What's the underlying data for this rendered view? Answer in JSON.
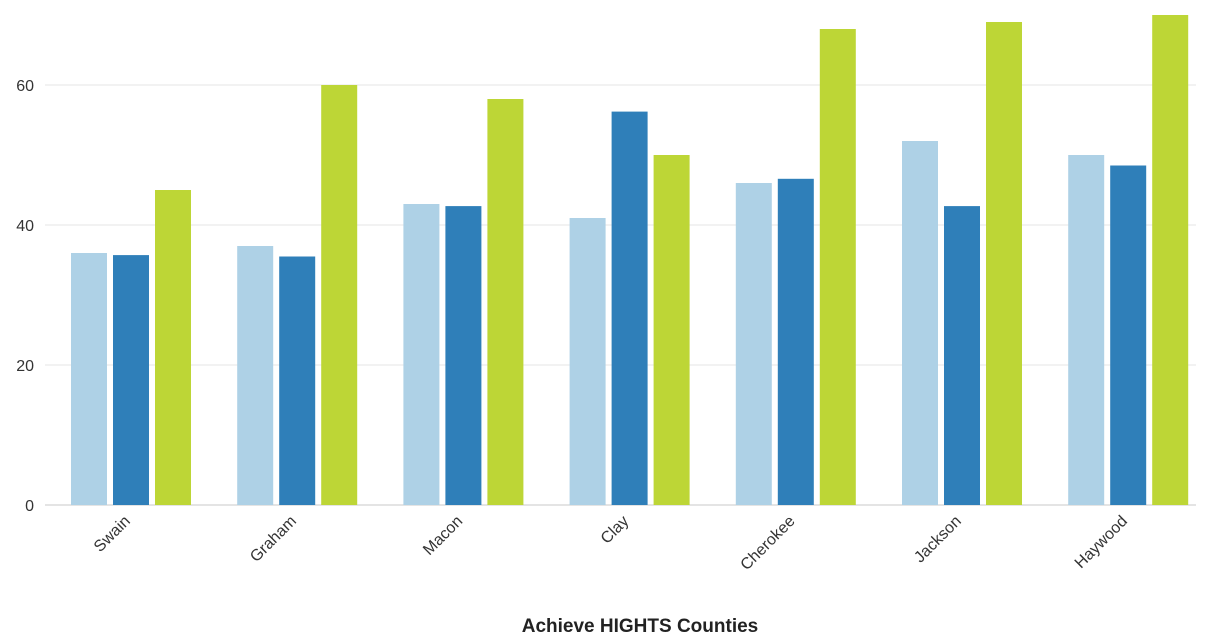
{
  "chart_data": {
    "type": "bar",
    "title": "",
    "xlabel": "Achieve HIGHTS Counties",
    "ylabel": "",
    "ylim": [
      0,
      70
    ],
    "yticks": [
      0,
      20,
      40,
      60
    ],
    "grid": true,
    "legend": "none",
    "categories": [
      "Swain",
      "Graham",
      "Macon",
      "Clay",
      "Cherokee",
      "Jackson",
      "Haywood"
    ],
    "series": [
      {
        "color": "#aed1e6",
        "values": [
          36,
          37,
          43,
          41,
          46,
          52,
          50
        ]
      },
      {
        "color": "#2f7fb9",
        "values": [
          35.7,
          35.5,
          42.7,
          56.2,
          46.6,
          42.7,
          48.5
        ]
      },
      {
        "color": "#bdd636",
        "values": [
          45,
          60,
          58,
          50,
          68,
          69,
          70
        ]
      }
    ]
  }
}
